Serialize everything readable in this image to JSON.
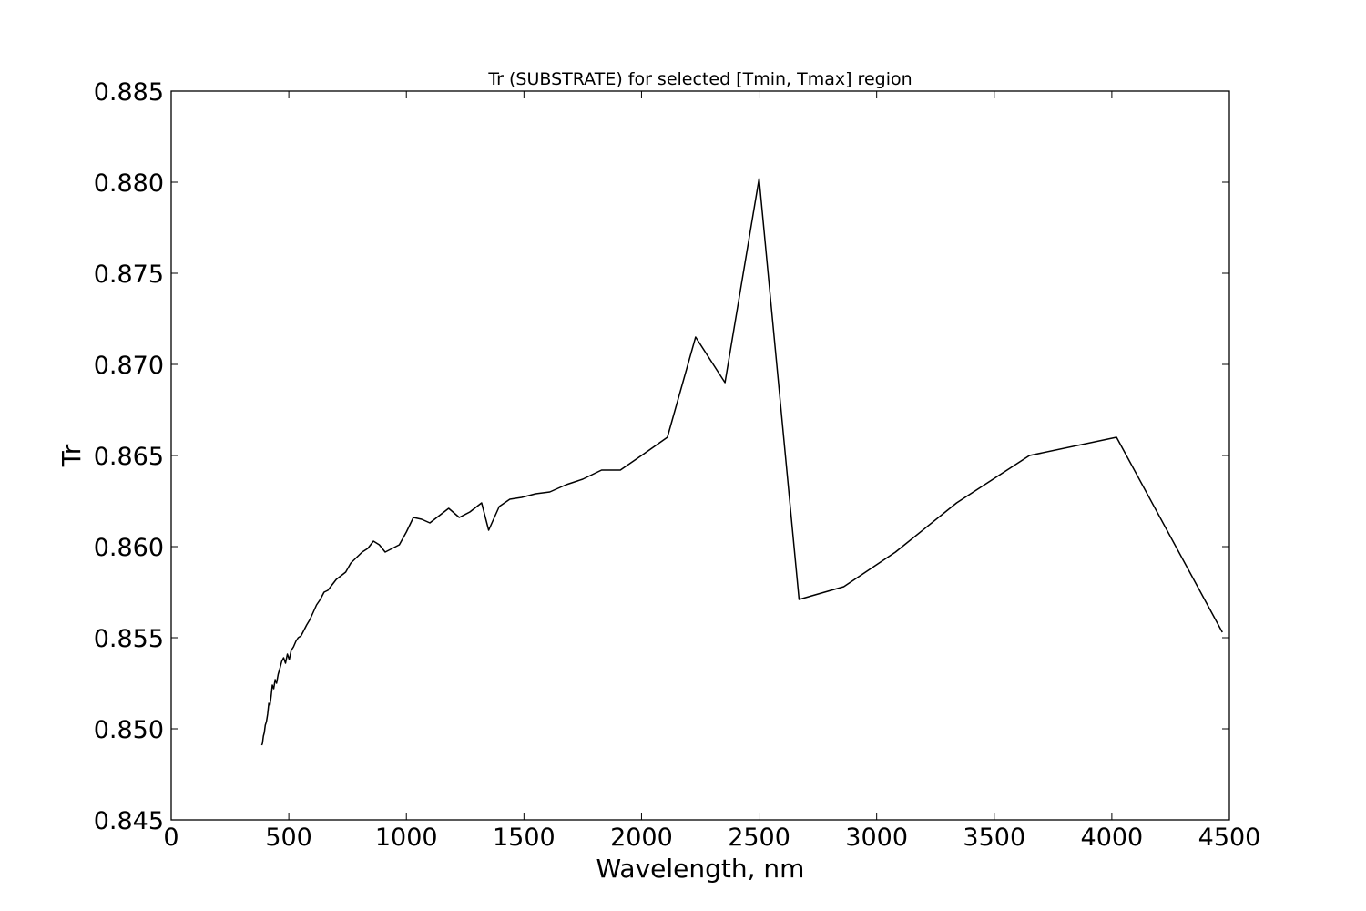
{
  "chart_data": {
    "type": "line",
    "title": "Tr (SUBSTRATE) for selected [Tmin, Tmax] region",
    "xlabel": "Wavelength, nm",
    "ylabel": "Tr",
    "xlim": [
      0,
      4500
    ],
    "ylim": [
      0.845,
      0.885
    ],
    "xticks": [
      0,
      500,
      1000,
      1500,
      2000,
      2500,
      3000,
      3500,
      4000,
      4500
    ],
    "xtick_labels": [
      "0",
      "500",
      "1000",
      "1500",
      "2000",
      "2500",
      "3000",
      "3500",
      "4000",
      "4500"
    ],
    "yticks": [
      0.845,
      0.85,
      0.855,
      0.86,
      0.865,
      0.87,
      0.875,
      0.88,
      0.885
    ],
    "ytick_labels": [
      "0.845",
      "0.850",
      "0.855",
      "0.860",
      "0.865",
      "0.870",
      "0.875",
      "0.880",
      "0.885"
    ],
    "grid": false,
    "line_color": "#000000",
    "series": [
      {
        "x": [
          385,
          388,
          392,
          396,
          400,
          405,
          410,
          415,
          420,
          425,
          430,
          436,
          442,
          448,
          455,
          462,
          470,
          478,
          486,
          494,
          502,
          510,
          520,
          530,
          540,
          552,
          564,
          576,
          590,
          604,
          618,
          634,
          650,
          666,
          684,
          702,
          722,
          742,
          764,
          788,
          812,
          836,
          860,
          885,
          910,
          940,
          970,
          1000,
          1030,
          1065,
          1100,
          1140,
          1180,
          1225,
          1270,
          1320,
          1350,
          1395,
          1440,
          1490,
          1550,
          1610,
          1680,
          1750,
          1830,
          1910,
          2000,
          2110,
          2230,
          2355,
          2500,
          2670,
          2860,
          3080,
          3340,
          3650,
          4020,
          4470
        ],
        "values": [
          0.8491,
          0.8492,
          0.8496,
          0.8498,
          0.8502,
          0.8504,
          0.8508,
          0.8514,
          0.8513,
          0.8518,
          0.8524,
          0.8522,
          0.8527,
          0.8525,
          0.853,
          0.8533,
          0.8537,
          0.8539,
          0.8536,
          0.8541,
          0.8538,
          0.8543,
          0.8545,
          0.8548,
          0.855,
          0.8551,
          0.8554,
          0.8557,
          0.856,
          0.8564,
          0.8568,
          0.8571,
          0.8575,
          0.8576,
          0.8579,
          0.8582,
          0.8584,
          0.8586,
          0.8591,
          0.8594,
          0.8597,
          0.8599,
          0.8603,
          0.8601,
          0.8597,
          0.8599,
          0.8601,
          0.8608,
          0.8616,
          0.8615,
          0.8613,
          0.8617,
          0.8621,
          0.8616,
          0.8619,
          0.8624,
          0.8609,
          0.8622,
          0.8626,
          0.8627,
          0.8629,
          0.863,
          0.8634,
          0.8637,
          0.8642,
          0.8642,
          0.865,
          0.866,
          0.8715,
          0.869,
          0.8802,
          0.8571,
          0.8578,
          0.8597,
          0.8624,
          0.865,
          0.866,
          0.8553
        ]
      }
    ]
  }
}
